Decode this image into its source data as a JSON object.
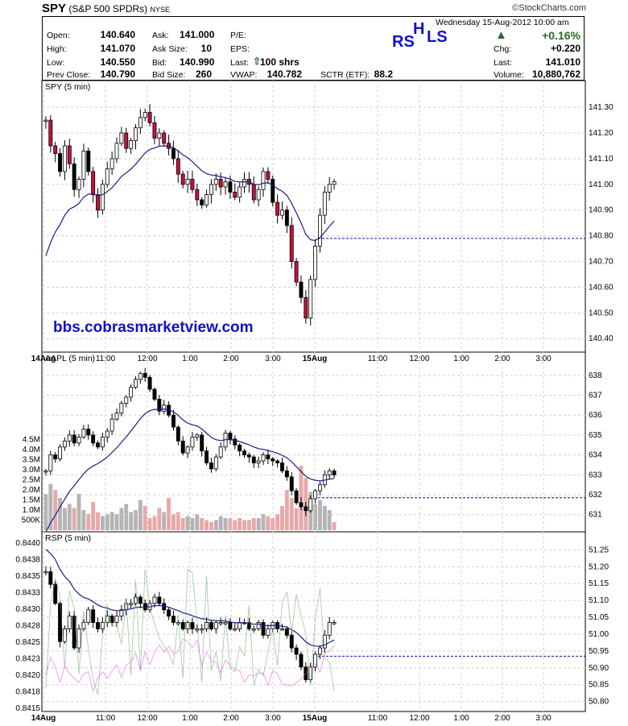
{
  "header": {
    "symbol": "SPY",
    "name": "(S&P 500 SPDRs)",
    "exchange": "NYSE",
    "provider": "©StockCharts.com",
    "datetime": "Wednesday  15-Aug-2012  10:00 am",
    "rhs_r": "RS",
    "rhs_h": "H",
    "rhs_l": "LS"
  },
  "quote": {
    "open_label": "Open:",
    "open": "140.640",
    "high_label": "High:",
    "high": "141.070",
    "low_label": "Low:",
    "low": "140.550",
    "prev_label": "Prev Close:",
    "prev": "140.790",
    "ask_label": "Ask:",
    "ask": "141.000",
    "asksize_label": "Ask Size:",
    "asksize": "10",
    "bid_label": "Bid:",
    "bid": "140.990",
    "bidsize_label": "Bid Size:",
    "bidsize": "260",
    "pe_label": "P/E:",
    "eps_label": "EPS:",
    "last_label": "Last:",
    "last_trade": "100 shrs",
    "vwap_label": "VWAP:",
    "vwap": "140.782",
    "sctr_label": "SCTR (ETF):",
    "sctr": "88.2",
    "pct_change": "+0.16%",
    "chg_label": "Chg:",
    "chg": "+0.220",
    "last2_label": "Last:",
    "last": "141.010",
    "volume_label": "Volume:",
    "volume": "10,880,762"
  },
  "watermark": "bbs.cobrasmarketview.com",
  "colors": {
    "up": "#ffffff",
    "down": "#000000",
    "red_down": "#c8103c",
    "ma": "#1c1c8c",
    "ref": "#1010a0",
    "vol_up": "#b4b4b4",
    "vol_dn": "#e8a8a8",
    "pink": "#e060e0",
    "green": "#60a060",
    "accent": "#2a6a2a"
  },
  "x_labels": [
    "14Aug",
    "11:00",
    "12:00",
    "1:00",
    "2:00",
    "3:00",
    "15Aug",
    "11:00",
    "12:00",
    "1:00",
    "2:00",
    "3:00"
  ],
  "chart_data": [
    {
      "type": "candlestick",
      "title": "SPY (5 min)",
      "ylim": [
        140.36,
        141.36
      ],
      "yticks": [
        "141.30",
        "141.20",
        "141.10",
        "141.00",
        "140.90",
        "140.80",
        "140.70",
        "140.60",
        "140.50",
        "140.40"
      ],
      "reference_line": 140.79,
      "close": [
        141.25,
        141.15,
        141.12,
        141.05,
        141.15,
        141.08,
        140.98,
        141.02,
        141.13,
        141.05,
        140.96,
        140.9,
        141.0,
        141.06,
        141.1,
        141.16,
        141.2,
        141.14,
        141.17,
        141.22,
        141.26,
        141.28,
        141.24,
        141.18,
        141.2,
        141.16,
        141.14,
        141.1,
        141.04,
        141.0,
        141.02,
        140.98,
        140.94,
        140.92,
        140.96,
        141.0,
        141.02,
        140.99,
        141.01,
        140.97,
        140.95,
        140.99,
        141.02,
        141.0,
        140.94,
        140.98,
        141.05,
        141.02,
        140.93,
        140.88,
        140.9,
        140.84,
        140.7,
        140.62,
        140.56,
        140.48,
        140.63,
        140.76,
        140.88,
        140.97,
        141.0,
        141.01
      ]
    },
    {
      "type": "candlestick+volume",
      "title": "AAPL (5 min)",
      "ylim": [
        630.3,
        638.6
      ],
      "yticks": [
        "638",
        "637",
        "636",
        "635",
        "634",
        "633",
        "632",
        "631"
      ],
      "vol_ticks": [
        "4.5M",
        "4.0M",
        "3.5M",
        "3.0M",
        "2.5M",
        "2.0M",
        "1.5M",
        "1.0M",
        "500K"
      ],
      "reference_line": 631.85,
      "close": [
        633.2,
        634.0,
        633.8,
        634.4,
        634.7,
        635.0,
        634.6,
        634.9,
        635.3,
        635.0,
        634.6,
        634.4,
        634.9,
        635.2,
        635.8,
        636.1,
        636.6,
        636.9,
        637.4,
        637.8,
        638.1,
        637.9,
        637.3,
        636.8,
        636.2,
        636.5,
        636.0,
        635.4,
        634.7,
        634.1,
        634.4,
        634.9,
        635.0,
        634.2,
        633.6,
        633.3,
        633.9,
        634.4,
        635.1,
        634.8,
        634.5,
        634.2,
        634.0,
        633.9,
        633.6,
        633.7,
        634.0,
        633.8,
        633.7,
        633.6,
        633.2,
        632.9,
        632.2,
        631.6,
        631.4,
        631.2,
        631.8,
        632.2,
        632.5,
        633.0,
        633.2,
        633.0
      ],
      "volume_m": [
        1.8,
        2.3,
        2.0,
        1.6,
        1.1,
        1.3,
        1.1,
        1.8,
        1.0,
        0.8,
        1.4,
        0.9,
        0.7,
        0.8,
        0.9,
        0.8,
        1.1,
        1.3,
        0.9,
        1.0,
        1.5,
        1.2,
        0.6,
        0.7,
        1.1,
        0.9,
        1.6,
        0.8,
        0.9,
        0.6,
        0.7,
        0.6,
        0.8,
        0.6,
        0.5,
        0.4,
        0.5,
        0.7,
        0.6,
        0.6,
        0.5,
        0.6,
        0.5,
        0.5,
        0.6,
        0.6,
        0.8,
        0.7,
        0.6,
        0.8,
        1.2,
        2.0,
        1.6,
        1.1,
        3.2,
        2.6,
        1.9,
        1.3,
        1.5,
        1.2,
        1.0,
        0.4
      ]
    },
    {
      "type": "candlestick+indicators",
      "title": "RSP (5 min)",
      "ylim": [
        0.84145,
        0.84405
      ],
      "yticks_left": [
        "0.8440",
        "0.8438",
        "0.8435",
        "0.8433",
        "0.8430",
        "0.8428",
        "0.8425",
        "0.8423",
        "0.8420",
        "0.8418",
        "0.8415"
      ],
      "yticks_right": [
        "51.25",
        "51.20",
        "51.15",
        "51.10",
        "51.05",
        "51.00",
        "50.95",
        "50.90",
        "50.85",
        "50.80"
      ],
      "reference_line": 0.84227,
      "close": [
        0.8436,
        0.8434,
        0.8431,
        0.8425,
        0.8427,
        0.8429,
        0.8424,
        0.8427,
        0.8428,
        0.843,
        0.8428,
        0.8427,
        0.8428,
        0.8429,
        0.8428,
        0.8429,
        0.843,
        0.8431,
        0.8431,
        0.8432,
        0.8431,
        0.843,
        0.8431,
        0.8432,
        0.8431,
        0.843,
        0.8429,
        0.8428,
        0.8428,
        0.8427,
        0.8428,
        0.8427,
        0.8427,
        0.8427,
        0.8428,
        0.8427,
        0.8428,
        0.8428,
        0.8428,
        0.8427,
        0.8427,
        0.8428,
        0.8428,
        0.8427,
        0.8427,
        0.8428,
        0.8426,
        0.8427,
        0.8428,
        0.8427,
        0.8427,
        0.8426,
        0.8424,
        0.8423,
        0.8421,
        0.8419,
        0.8421,
        0.8423,
        0.8424,
        0.8426,
        0.8428,
        0.8428
      ]
    }
  ]
}
